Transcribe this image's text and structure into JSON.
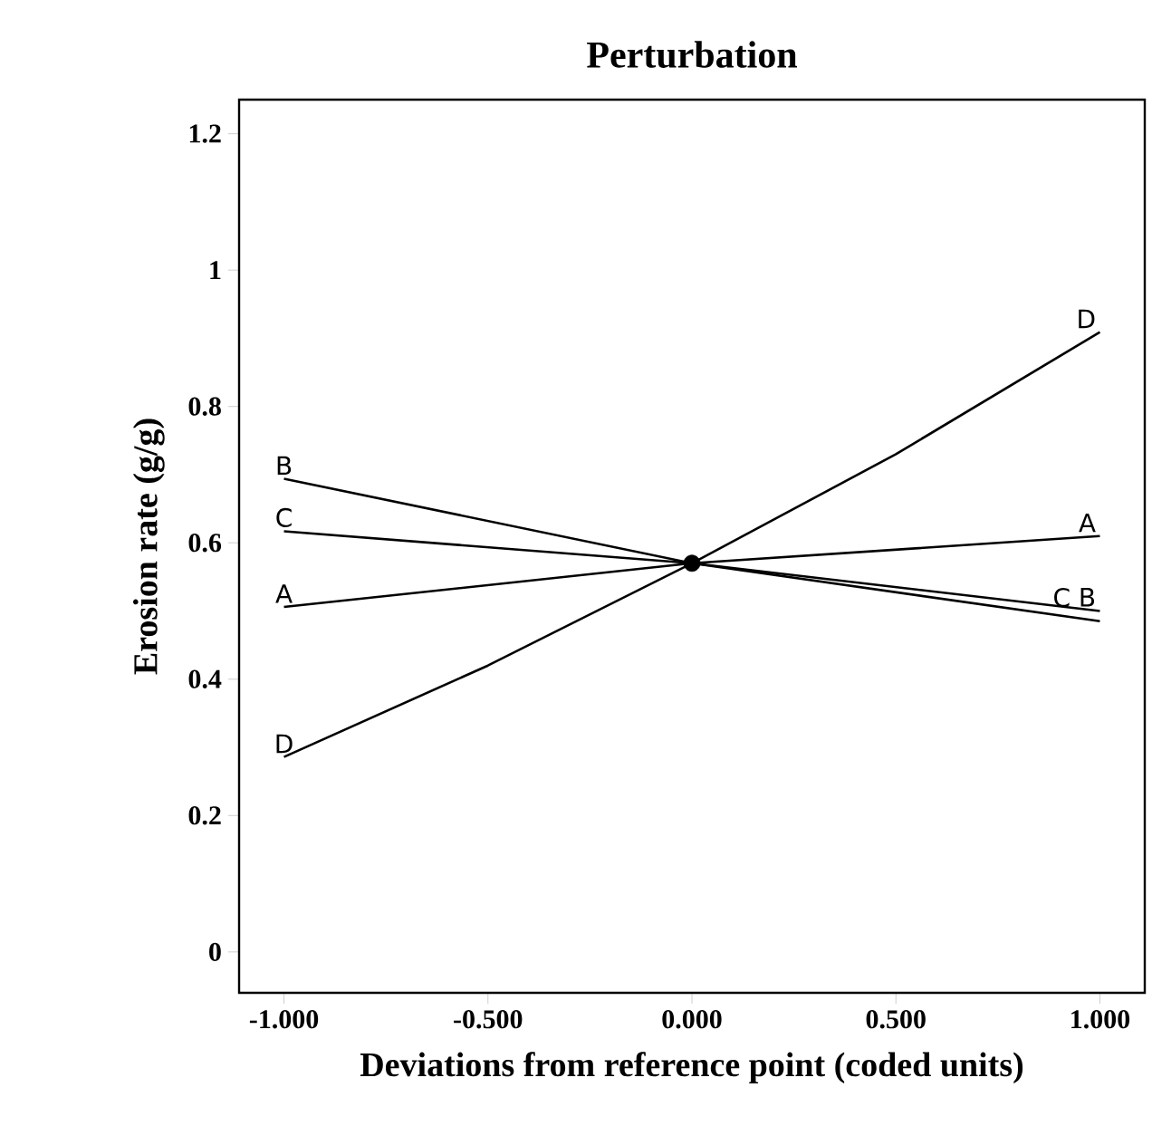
{
  "chart_data": {
    "type": "line",
    "title": "Perturbation",
    "xlabel": "Deviations from reference point (coded units)",
    "ylabel": "Erosion rate (g/g)",
    "xlim": [
      -1.11,
      1.11
    ],
    "ylim": [
      -0.06,
      1.25
    ],
    "xticks": [
      {
        "value": -1,
        "label": "-1.000"
      },
      {
        "value": -0.5,
        "label": "-0.500"
      },
      {
        "value": 0,
        "label": "0.000"
      },
      {
        "value": 0.5,
        "label": "0.500"
      },
      {
        "value": 1,
        "label": "1.000"
      }
    ],
    "yticks": [
      0,
      0.2,
      0.4,
      0.6,
      0.8,
      1,
      1.2
    ],
    "marker": "none",
    "line_style": "solid",
    "series": [
      {
        "name": "A",
        "color": "#000000",
        "x": [
          -1,
          0,
          1
        ],
        "values": [
          0.506,
          0.57,
          0.61
        ]
      },
      {
        "name": "B",
        "color": "#000000",
        "x": [
          -1,
          0,
          1
        ],
        "values": [
          0.694,
          0.57,
          0.485
        ]
      },
      {
        "name": "C",
        "color": "#000000",
        "x": [
          -1,
          0,
          1
        ],
        "values": [
          0.617,
          0.57,
          0.5
        ]
      },
      {
        "name": "D",
        "color": "#000000",
        "x": [
          -1,
          -0.5,
          0,
          0.5,
          1
        ],
        "values": [
          0.286,
          0.42,
          0.57,
          0.73,
          0.909
        ]
      },
      {
        "type": "scatter",
        "marker": "circle",
        "color": "#000000",
        "x": [
          0
        ],
        "values": [
          0.57
        ]
      }
    ]
  }
}
